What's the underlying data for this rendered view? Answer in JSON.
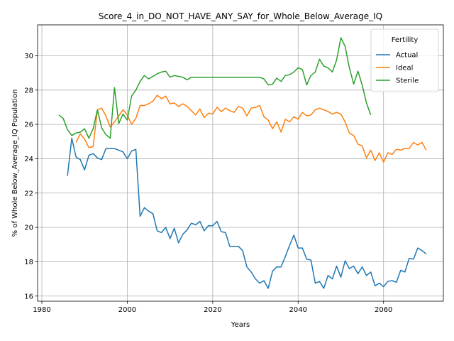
{
  "chart_data": {
    "type": "line",
    "title": "Score_4_in_DO_NOT_HAVE_ANY_SAY_for_Whole_Below_Average_IQ",
    "xlabel": "Years",
    "ylabel": "% of Whole Below_Average_IQ Population",
    "xlim": [
      1979,
      2074
    ],
    "ylim": [
      15.7,
      31.8
    ],
    "xticks": [
      1980,
      2000,
      2020,
      2040,
      2060
    ],
    "yticks": [
      16,
      18,
      20,
      22,
      24,
      26,
      28,
      30
    ],
    "grid": true,
    "legend": {
      "title": "Fertility",
      "position": "top-right"
    },
    "series": [
      {
        "name": "Actual",
        "color": "#1f77b4",
        "x": [
          1986,
          1987,
          1988,
          1989,
          1990,
          1991,
          1992,
          1993,
          1994,
          1995,
          1996,
          1997,
          1998,
          1999,
          2000,
          2001,
          2002,
          2003,
          2004,
          2005,
          2006,
          2007,
          2008,
          2009,
          2010,
          2011,
          2012,
          2013,
          2014,
          2015,
          2016,
          2017,
          2018,
          2019,
          2020,
          2021,
          2022,
          2023,
          2024,
          2025,
          2026,
          2027,
          2028,
          2029,
          2030,
          2031,
          2032,
          2033,
          2034,
          2035,
          2036,
          2037,
          2038,
          2039,
          2040,
          2041,
          2042,
          2043,
          2044,
          2045,
          2046,
          2047,
          2048,
          2049,
          2050,
          2051,
          2052,
          2053,
          2054,
          2055,
          2056,
          2057,
          2058,
          2059,
          2060,
          2061,
          2062,
          2063,
          2064,
          2065,
          2066,
          2067,
          2068,
          2069,
          2070
        ],
        "y": [
          23.0,
          25.2,
          24.1,
          23.95,
          23.35,
          24.2,
          24.3,
          24.05,
          23.95,
          24.6,
          24.6,
          24.6,
          24.5,
          24.4,
          24.0,
          24.45,
          24.55,
          20.65,
          21.15,
          20.95,
          20.8,
          19.8,
          19.7,
          20.0,
          19.35,
          19.95,
          19.1,
          19.6,
          19.85,
          20.25,
          20.15,
          20.35,
          19.8,
          20.1,
          20.1,
          20.35,
          19.75,
          19.7,
          18.9,
          18.9,
          18.9,
          18.65,
          17.7,
          17.4,
          17.0,
          16.75,
          16.9,
          16.45,
          17.45,
          17.7,
          17.7,
          18.3,
          18.95,
          19.55,
          18.8,
          18.8,
          18.15,
          18.1,
          16.75,
          16.85,
          16.45,
          17.2,
          17.0,
          17.75,
          17.1,
          18.05,
          17.6,
          17.75,
          17.3,
          17.7,
          17.2,
          17.4,
          16.6,
          16.75,
          16.55,
          16.85,
          16.9,
          16.8,
          17.5,
          17.4,
          18.2,
          18.15,
          18.8,
          18.65,
          18.45
        ]
      },
      {
        "name": "Ideal",
        "color": "#ff7f0e",
        "x": [
          1988,
          1989,
          1990,
          1991,
          1992,
          1993,
          1994,
          1995,
          1996,
          1997,
          1998,
          1999,
          2000,
          2001,
          2002,
          2003,
          2004,
          2005,
          2006,
          2007,
          2008,
          2009,
          2010,
          2011,
          2012,
          2013,
          2014,
          2015,
          2016,
          2017,
          2018,
          2019,
          2020,
          2021,
          2022,
          2023,
          2024,
          2025,
          2026,
          2027,
          2028,
          2029,
          2030,
          2031,
          2032,
          2033,
          2034,
          2035,
          2036,
          2037,
          2038,
          2039,
          2040,
          2041,
          2042,
          2043,
          2044,
          2045,
          2046,
          2047,
          2048,
          2049,
          2050,
          2051,
          2052,
          2053,
          2054,
          2055,
          2056,
          2057,
          2058,
          2059,
          2060,
          2061,
          2062,
          2063,
          2064,
          2065,
          2066,
          2067,
          2068,
          2069,
          2070
        ],
        "y": [
          24.95,
          25.45,
          25.15,
          24.65,
          24.7,
          26.85,
          26.95,
          26.5,
          25.85,
          26.15,
          26.5,
          26.85,
          26.55,
          26.0,
          26.35,
          27.1,
          27.1,
          27.2,
          27.35,
          27.7,
          27.5,
          27.65,
          27.2,
          27.25,
          27.05,
          27.2,
          27.05,
          26.8,
          26.55,
          26.9,
          26.4,
          26.65,
          26.6,
          27.0,
          26.75,
          26.95,
          26.8,
          26.7,
          27.05,
          26.95,
          26.5,
          26.95,
          27.0,
          27.1,
          26.45,
          26.25,
          25.75,
          26.15,
          25.55,
          26.3,
          26.15,
          26.45,
          26.3,
          26.7,
          26.5,
          26.55,
          26.85,
          26.95,
          26.85,
          26.75,
          26.6,
          26.7,
          26.6,
          26.15,
          25.5,
          25.35,
          24.85,
          24.75,
          24.05,
          24.5,
          23.9,
          24.35,
          23.8,
          24.35,
          24.25,
          24.55,
          24.5,
          24.6,
          24.6,
          24.95,
          24.8,
          24.95,
          24.5
        ]
      },
      {
        "name": "Sterile",
        "color": "#2ca02c",
        "x": [
          1984,
          1985,
          1986,
          1987,
          1988,
          1989,
          1990,
          1991,
          1992,
          1993,
          1994,
          1995,
          1996,
          1997,
          1998,
          1999,
          2000,
          2001,
          2002,
          2003,
          2004,
          2005,
          2006,
          2007,
          2008,
          2009,
          2010,
          2011,
          2012,
          2013,
          2014,
          2015,
          2016,
          2017,
          2018,
          2019,
          2020,
          2021,
          2022,
          2023,
          2024,
          2025,
          2026,
          2027,
          2028,
          2029,
          2030,
          2031,
          2032,
          2033,
          2034,
          2035,
          2036,
          2037,
          2038,
          2039,
          2040,
          2041,
          2042,
          2043,
          2044,
          2045,
          2046,
          2047,
          2048,
          2049,
          2050,
          2051,
          2052,
          2053,
          2054,
          2055,
          2056,
          2057
        ],
        "y": [
          26.55,
          26.35,
          25.7,
          25.35,
          25.5,
          25.55,
          25.75,
          25.2,
          25.75,
          26.85,
          25.8,
          25.4,
          25.2,
          28.15,
          26.05,
          26.6,
          26.25,
          27.65,
          28.0,
          28.5,
          28.85,
          28.65,
          28.8,
          28.95,
          29.05,
          29.1,
          28.75,
          28.85,
          28.8,
          28.75,
          28.6,
          28.75,
          28.75,
          28.75,
          28.75,
          28.75,
          28.75,
          28.75,
          28.75,
          28.75,
          28.75,
          28.75,
          28.75,
          28.75,
          28.75,
          28.75,
          28.75,
          28.75,
          28.65,
          28.3,
          28.35,
          28.7,
          28.5,
          28.85,
          28.9,
          29.05,
          29.3,
          29.2,
          28.3,
          28.85,
          29.05,
          29.8,
          29.4,
          29.3,
          29.05,
          29.75,
          31.05,
          30.55,
          29.3,
          28.35,
          29.1,
          28.3,
          27.25,
          26.55
        ]
      }
    ]
  }
}
